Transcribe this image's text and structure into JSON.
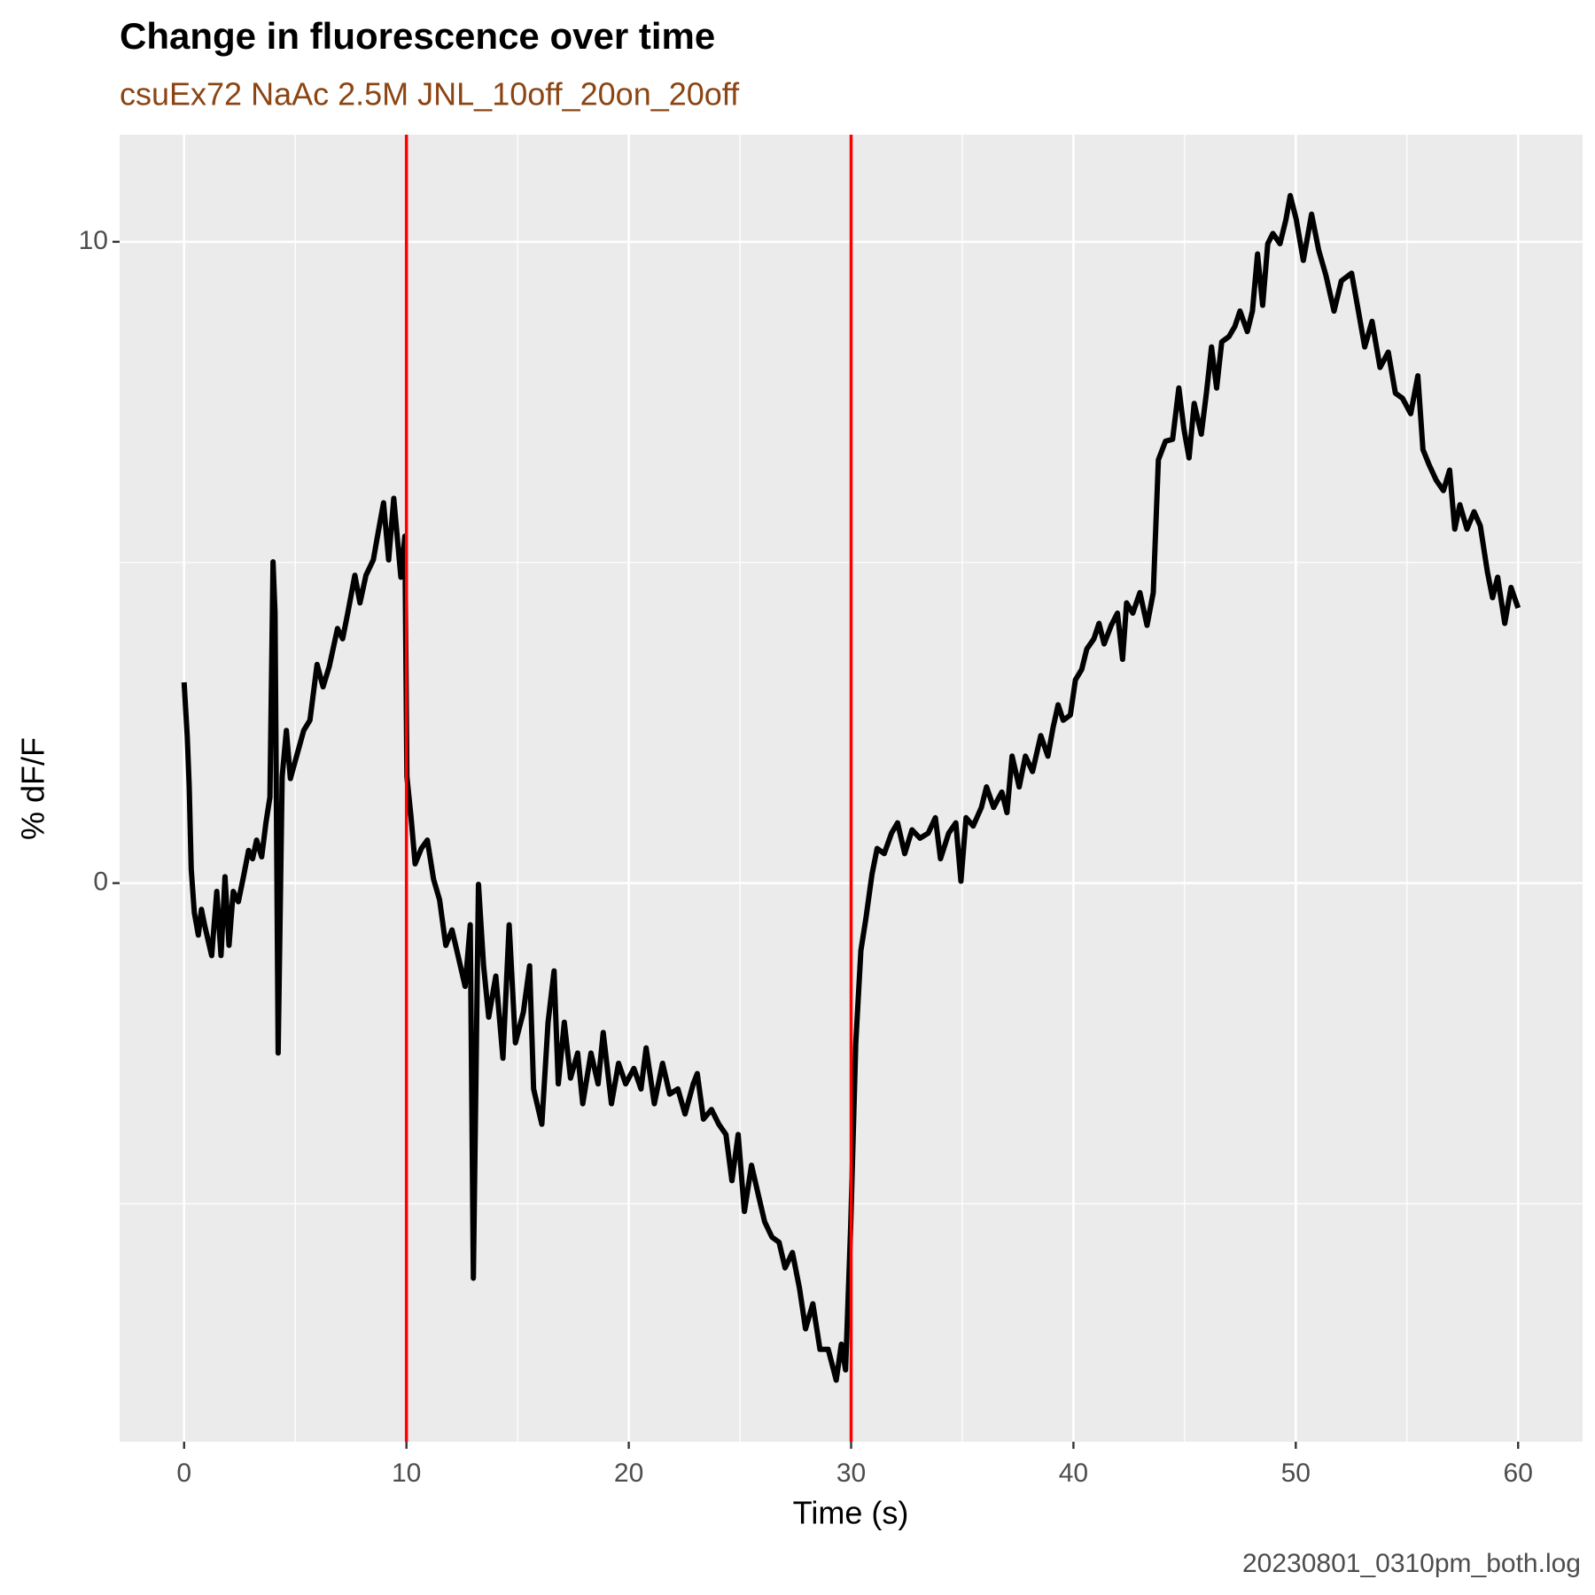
{
  "chart_data": {
    "type": "line",
    "title": "Change in fluorescence over time",
    "subtitle": "csuEx72 NaAc 2.5M JNL_10off_20on_20off",
    "x_label": "Time (s)",
    "y_label": "% dF/F",
    "caption": "20230801_0310pm_both.log",
    "color": "#000000",
    "vlines": [
      10,
      30
    ],
    "vline_color": "#ff0000",
    "background": "#ebebeb",
    "grid": true,
    "xlim": [
      -2.9,
      62.9
    ],
    "ylim": [
      -8.71,
      11.67
    ],
    "xticks": [
      0,
      10,
      20,
      30,
      40,
      50,
      60
    ],
    "xminor": [
      5,
      15,
      25,
      35,
      45,
      55
    ],
    "yticks": [
      0,
      10
    ],
    "yminor": [
      -5,
      5
    ],
    "x": [
      0,
      0.14,
      0.23,
      0.32,
      0.46,
      0.64,
      0.78,
      0.92,
      1.24,
      1.47,
      1.66,
      1.84,
      2.02,
      2.21,
      2.44,
      2.67,
      2.9,
      3.08,
      3.26,
      3.49,
      3.68,
      3.86,
      4,
      4.09,
      4.23,
      4.41,
      4.6,
      4.78,
      5.06,
      5.38,
      5.66,
      5.98,
      6.25,
      6.53,
      6.9,
      7.13,
      7.36,
      7.68,
      7.91,
      8.18,
      8.51,
      8.74,
      8.97,
      9.2,
      9.43,
      9.75,
      9.93,
      10.02,
      10.21,
      10.39,
      10.67,
      10.94,
      11.22,
      11.49,
      11.77,
      12.05,
      12.32,
      12.64,
      12.87,
      13.01,
      13.24,
      13.47,
      13.7,
      14.02,
      14.34,
      14.62,
      14.9,
      15.26,
      15.54,
      15.72,
      16.09,
      16.37,
      16.64,
      16.83,
      17.1,
      17.38,
      17.7,
      17.93,
      18.3,
      18.62,
      18.85,
      19.22,
      19.54,
      19.86,
      20.23,
      20.55,
      20.78,
      21.15,
      21.52,
      21.84,
      22.21,
      22.53,
      22.9,
      23.08,
      23.36,
      23.72,
      24.05,
      24.37,
      24.64,
      24.92,
      25.2,
      25.52,
      25.84,
      26.11,
      26.44,
      26.76,
      27.03,
      27.36,
      27.68,
      27.95,
      28.28,
      28.6,
      28.97,
      29.33,
      29.56,
      29.75,
      29.98,
      30.21,
      30.44,
      30.67,
      30.94,
      31.17,
      31.49,
      31.82,
      32.09,
      32.41,
      32.74,
      33.1,
      33.47,
      33.79,
      34.02,
      34.39,
      34.71,
      34.94,
      35.17,
      35.49,
      35.86,
      36.09,
      36.41,
      36.78,
      37.01,
      37.24,
      37.56,
      37.84,
      38.16,
      38.53,
      38.85,
      39.08,
      39.31,
      39.54,
      39.86,
      40.09,
      40.37,
      40.6,
      40.92,
      41.15,
      41.38,
      41.7,
      41.98,
      42.21,
      42.39,
      42.67,
      42.99,
      43.31,
      43.59,
      43.82,
      44.14,
      44.46,
      44.74,
      44.97,
      45.2,
      45.43,
      45.75,
      45.98,
      46.21,
      46.44,
      46.67,
      46.99,
      47.26,
      47.49,
      47.82,
      48.05,
      48.28,
      48.51,
      48.74,
      48.97,
      49.29,
      49.56,
      49.75,
      50.02,
      50.34,
      50.71,
      51.03,
      51.36,
      51.72,
      52.05,
      52.51,
      52.78,
      53.1,
      53.43,
      53.79,
      54.16,
      54.48,
      54.8,
      55.17,
      55.49,
      55.72,
      56,
      56.32,
      56.64,
      56.92,
      57.15,
      57.38,
      57.7,
      58.02,
      58.3,
      58.62,
      58.85,
      59.08,
      59.4,
      59.68,
      60
    ],
    "values": [
      3.13,
      2.3,
      1.5,
      0.22,
      -0.46,
      -0.81,
      -0.41,
      -0.65,
      -1.13,
      -0.13,
      -1.13,
      0.1,
      -0.97,
      -0.13,
      -0.29,
      0.1,
      0.51,
      0.38,
      0.67,
      0.41,
      0.94,
      1.34,
      5.01,
      4.21,
      -2.65,
      1.66,
      2.38,
      1.63,
      1.98,
      2.38,
      2.54,
      3.41,
      3.06,
      3.38,
      3.97,
      3.81,
      4.21,
      4.8,
      4.37,
      4.8,
      5.04,
      5.49,
      5.93,
      5.04,
      6,
      4.77,
      5.41,
      1.66,
      1.02,
      0.3,
      0.54,
      0.67,
      0.06,
      -0.26,
      -0.97,
      -0.73,
      -1.13,
      -1.61,
      -0.65,
      -6.16,
      -0.02,
      -1.29,
      -2.09,
      -1.45,
      -2.73,
      -0.65,
      -2.49,
      -2.01,
      -1.29,
      -3.21,
      -3.76,
      -2.17,
      -1.37,
      -3.13,
      -2.17,
      -3.04,
      -2.65,
      -3.44,
      -2.65,
      -3.13,
      -2.33,
      -3.44,
      -2.81,
      -3.13,
      -2.89,
      -3.21,
      -2.57,
      -3.44,
      -2.81,
      -3.29,
      -3.21,
      -3.6,
      -3.13,
      -2.97,
      -3.68,
      -3.53,
      -3.76,
      -3.92,
      -4.64,
      -3.92,
      -5.12,
      -4.4,
      -4.88,
      -5.28,
      -5.52,
      -5.6,
      -6,
      -5.76,
      -6.32,
      -6.95,
      -6.56,
      -7.27,
      -7.27,
      -7.75,
      -7.19,
      -7.59,
      -5.36,
      -2.49,
      -1.05,
      -0.54,
      0.14,
      0.54,
      0.46,
      0.78,
      0.94,
      0.46,
      0.83,
      0.7,
      0.78,
      1.02,
      0.38,
      0.78,
      0.94,
      0.03,
      1.02,
      0.89,
      1.18,
      1.5,
      1.18,
      1.42,
      1.1,
      1.98,
      1.5,
      1.98,
      1.74,
      2.3,
      1.98,
      2.42,
      2.78,
      2.54,
      2.62,
      3.17,
      3.33,
      3.65,
      3.81,
      4.05,
      3.73,
      4.02,
      4.21,
      3.49,
      4.37,
      4.21,
      4.53,
      4.02,
      4.53,
      6.6,
      6.89,
      6.92,
      7.72,
      7.08,
      6.63,
      7.48,
      7,
      7.64,
      8.36,
      7.72,
      8.44,
      8.52,
      8.68,
      8.92,
      8.6,
      8.92,
      9.81,
      9.01,
      9.97,
      10.13,
      9.97,
      10.35,
      10.72,
      10.35,
      9.71,
      10.43,
      9.87,
      9.47,
      8.92,
      9.39,
      9.51,
      8.99,
      8.36,
      8.76,
      8.04,
      8.28,
      7.64,
      7.56,
      7.32,
      7.91,
      6.76,
      6.52,
      6.28,
      6.12,
      6.44,
      5.52,
      5.9,
      5.52,
      5.79,
      5.57,
      4.85,
      4.45,
      4.77,
      4.05,
      4.61,
      4.29
    ]
  }
}
